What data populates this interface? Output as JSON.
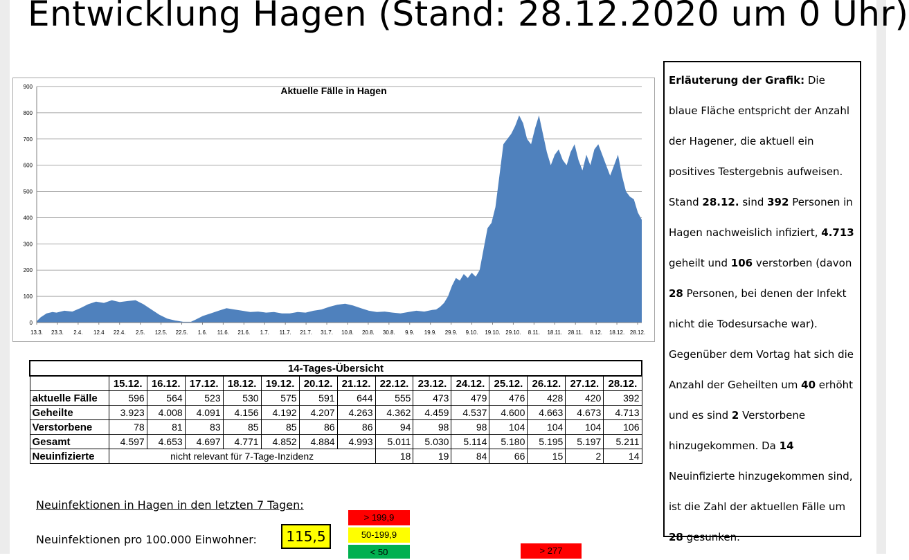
{
  "page_title": "Entwicklung Hagen (Stand:  28.12.2020 um 0 Uhr)",
  "chart_data": {
    "type": "area",
    "title": "Aktuelle Fälle in Hagen",
    "color": "#4f81bd",
    "ylim": [
      0,
      900
    ],
    "yticks": [
      0,
      100,
      200,
      300,
      400,
      500,
      600,
      700,
      800,
      900
    ],
    "grid": true,
    "xtick_labels": [
      "13.3.",
      "23.3.",
      "2.4.",
      "12.4",
      "22.4.",
      "2.5.",
      "12.5.",
      "22.5.",
      "1.6.",
      "11.6.",
      "21.6.",
      "1.7.",
      "11.7.",
      "21.7.",
      "31.7.",
      "10.8.",
      "20.8.",
      "30.8.",
      "9.9.",
      "19.9.",
      "29.9.",
      "9.10.",
      "19.10.",
      "29.10.",
      "8.11.",
      "18.11.",
      "28.11.",
      "8.12.",
      "18.12.",
      "28.12."
    ],
    "points": [
      [
        0,
        5
      ],
      [
        2,
        20
      ],
      [
        5,
        35
      ],
      [
        8,
        40
      ],
      [
        10,
        38
      ],
      [
        14,
        45
      ],
      [
        18,
        42
      ],
      [
        22,
        55
      ],
      [
        26,
        70
      ],
      [
        30,
        80
      ],
      [
        34,
        75
      ],
      [
        38,
        85
      ],
      [
        42,
        78
      ],
      [
        46,
        82
      ],
      [
        50,
        85
      ],
      [
        54,
        70
      ],
      [
        58,
        50
      ],
      [
        62,
        30
      ],
      [
        66,
        15
      ],
      [
        70,
        8
      ],
      [
        74,
        3
      ],
      [
        78,
        3
      ],
      [
        80,
        10
      ],
      [
        84,
        25
      ],
      [
        88,
        35
      ],
      [
        92,
        45
      ],
      [
        96,
        55
      ],
      [
        100,
        50
      ],
      [
        104,
        45
      ],
      [
        108,
        40
      ],
      [
        112,
        42
      ],
      [
        116,
        38
      ],
      [
        120,
        40
      ],
      [
        124,
        35
      ],
      [
        128,
        35
      ],
      [
        132,
        40
      ],
      [
        136,
        38
      ],
      [
        140,
        45
      ],
      [
        144,
        50
      ],
      [
        148,
        60
      ],
      [
        152,
        68
      ],
      [
        156,
        72
      ],
      [
        160,
        65
      ],
      [
        164,
        55
      ],
      [
        168,
        45
      ],
      [
        172,
        40
      ],
      [
        176,
        42
      ],
      [
        180,
        38
      ],
      [
        184,
        35
      ],
      [
        188,
        40
      ],
      [
        192,
        45
      ],
      [
        196,
        42
      ],
      [
        200,
        48
      ],
      [
        202,
        50
      ],
      [
        204,
        60
      ],
      [
        206,
        75
      ],
      [
        208,
        100
      ],
      [
        210,
        140
      ],
      [
        212,
        170
      ],
      [
        214,
        160
      ],
      [
        216,
        185
      ],
      [
        218,
        170
      ],
      [
        220,
        190
      ],
      [
        222,
        175
      ],
      [
        224,
        200
      ],
      [
        226,
        280
      ],
      [
        228,
        360
      ],
      [
        230,
        380
      ],
      [
        232,
        440
      ],
      [
        234,
        560
      ],
      [
        236,
        680
      ],
      [
        238,
        700
      ],
      [
        240,
        720
      ],
      [
        242,
        750
      ],
      [
        244,
        790
      ],
      [
        246,
        760
      ],
      [
        248,
        700
      ],
      [
        250,
        680
      ],
      [
        252,
        740
      ],
      [
        254,
        790
      ],
      [
        256,
        720
      ],
      [
        258,
        650
      ],
      [
        260,
        600
      ],
      [
        262,
        640
      ],
      [
        264,
        660
      ],
      [
        266,
        620
      ],
      [
        268,
        600
      ],
      [
        270,
        650
      ],
      [
        272,
        680
      ],
      [
        274,
        620
      ],
      [
        276,
        580
      ],
      [
        278,
        640
      ],
      [
        280,
        600
      ],
      [
        282,
        660
      ],
      [
        284,
        680
      ],
      [
        286,
        640
      ],
      [
        288,
        600
      ],
      [
        290,
        560
      ],
      [
        292,
        600
      ],
      [
        294,
        640
      ],
      [
        296,
        560
      ],
      [
        298,
        500
      ],
      [
        300,
        480
      ],
      [
        302,
        470
      ],
      [
        304,
        420
      ],
      [
        306,
        392
      ]
    ],
    "x_max": 306
  },
  "explanation": {
    "parts": [
      {
        "b": "Erläuterung der Grafik:"
      },
      {
        "t": " Die blaue Fläche entspricht der Anzahl der Hagener, die aktuell ein positives Testergebnis aufweisen. Stand "
      },
      {
        "b": "28.12."
      },
      {
        "t": " sind "
      },
      {
        "b": "392"
      },
      {
        "t": " Personen in Hagen nachweislich infiziert, "
      },
      {
        "b": "4.713"
      },
      {
        "t": " geheilt und "
      },
      {
        "b": "106"
      },
      {
        "t": " verstorben (davon "
      },
      {
        "b": "28"
      },
      {
        "t": " Personen, bei denen der Infekt nicht die Todesursache war). Gegenüber dem Vortag hat sich die Anzahl der Geheilten um "
      },
      {
        "b": "40"
      },
      {
        "t": " erhöht und es sind "
      },
      {
        "b": "2"
      },
      {
        "t": " Verstorbene hinzugekommen. Da "
      },
      {
        "b": "14"
      },
      {
        "t": " Neuinfizierte hinzugekommen sind, ist die Zahl der aktuellen Fälle um "
      },
      {
        "b": "28"
      },
      {
        "t": " gesunken."
      }
    ]
  },
  "overview": {
    "caption": "14-Tages-Übersicht",
    "dates": [
      "15.12.",
      "16.12.",
      "17.12.",
      "18.12.",
      "19.12.",
      "20.12.",
      "21.12.",
      "22.12.",
      "23.12.",
      "24.12.",
      "25.12.",
      "26.12.",
      "27.12.",
      "28.12."
    ],
    "rows": [
      {
        "label": "aktuelle Fälle",
        "values": [
          "596",
          "564",
          "523",
          "530",
          "575",
          "591",
          "644",
          "555",
          "473",
          "479",
          "476",
          "428",
          "420",
          "392"
        ]
      },
      {
        "label": "Geheilte",
        "values": [
          "3.923",
          "4.008",
          "4.091",
          "4.156",
          "4.192",
          "4.207",
          "4.263",
          "4.362",
          "4.459",
          "4.537",
          "4.600",
          "4.663",
          "4.673",
          "4.713"
        ]
      },
      {
        "label": "Verstorbene",
        "values": [
          "78",
          "81",
          "83",
          "85",
          "85",
          "86",
          "86",
          "94",
          "98",
          "98",
          "104",
          "104",
          "104",
          "106"
        ]
      },
      {
        "label": "Gesamt",
        "values": [
          "4.597",
          "4.653",
          "4.697",
          "4.771",
          "4.852",
          "4.884",
          "4.993",
          "5.011",
          "5.030",
          "5.114",
          "5.180",
          "5.195",
          "5.197",
          "5.211"
        ]
      }
    ],
    "new_infections": {
      "label": "Neuinfizierte",
      "note": "nicht relevant für 7-Tage-Inzidenz",
      "values": [
        "18",
        "19",
        "84",
        "66",
        "15",
        "2",
        "14"
      ]
    }
  },
  "incidence": {
    "heading": "Neuinfektionen in Hagen in den letzten 7 Tagen:",
    "label": "Neuinfektionen pro 100.000 Einwohner:",
    "value": "115,5",
    "legend": {
      "red": "> 199,9",
      "yellow": "50-199,9",
      "green": "< 50",
      "red2": "> 277"
    }
  }
}
